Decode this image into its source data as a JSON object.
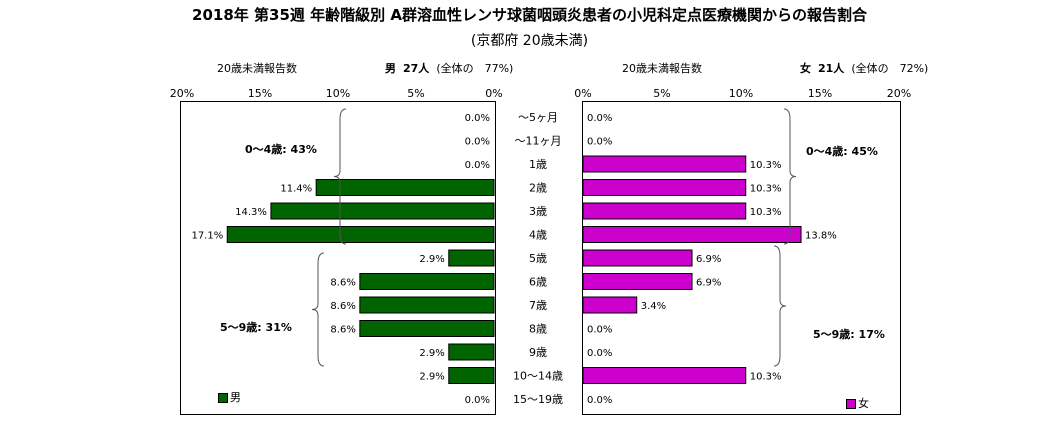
{
  "title": "2018年 第35週 年齢階級別 A群溶血性レンサ球菌咽頭炎患者の小児科定点医療機関からの報告割合",
  "subtitle": "(京都府 20歳未満)",
  "left_header": {
    "caption": "20歳未満報告数",
    "sex": "男",
    "count": "27人",
    "share": "(全体の　77%)"
  },
  "right_header": {
    "caption": "20歳未満報告数",
    "sex": "女",
    "count": "21人",
    "share": "(全体の　72%)"
  },
  "left_ticks": [
    "20%",
    "15%",
    "10%",
    "5%",
    "0%"
  ],
  "right_ticks": [
    "0%",
    "5%",
    "10%",
    "15%",
    "20%"
  ],
  "colors": {
    "male": "#006400",
    "female": "#cc00cc"
  },
  "chart_data": {
    "type": "bar",
    "orientation": "horizontal-pyramid",
    "categories": [
      "～5ヶ月",
      "～11ヶ月",
      "1歳",
      "2歳",
      "3歳",
      "4歳",
      "5歳",
      "6歳",
      "7歳",
      "8歳",
      "9歳",
      "10～14歳",
      "15～19歳"
    ],
    "series": [
      {
        "name": "男",
        "values": [
          0.0,
          0.0,
          0.0,
          11.4,
          14.3,
          17.1,
          2.9,
          8.6,
          8.6,
          8.6,
          2.9,
          2.9,
          0.0
        ],
        "labels": [
          "0.0%",
          "0.0%",
          "0.0%",
          "11.4%",
          "14.3%",
          "17.1%",
          "2.9%",
          "8.6%",
          "8.6%",
          "8.6%",
          "2.9%",
          "2.9%",
          "0.0%"
        ]
      },
      {
        "name": "女",
        "values": [
          0.0,
          0.0,
          10.3,
          10.3,
          10.3,
          13.8,
          6.9,
          6.9,
          3.4,
          0.0,
          0.0,
          10.3,
          0.0
        ],
        "labels": [
          "0.0%",
          "0.0%",
          "10.3%",
          "10.3%",
          "10.3%",
          "13.8%",
          "6.9%",
          "6.9%",
          "3.4%",
          "0.0%",
          "0.0%",
          "10.3%",
          "0.0%"
        ]
      }
    ],
    "xlim": [
      0,
      20
    ],
    "annotations": {
      "male_0_4": "0～4歳: 43%",
      "male_5_9": "5～9歳: 31%",
      "female_0_4": "0～4歳: 45%",
      "female_5_9": "5～9歳: 17%"
    },
    "legend": {
      "male": "男",
      "female": "女"
    }
  }
}
